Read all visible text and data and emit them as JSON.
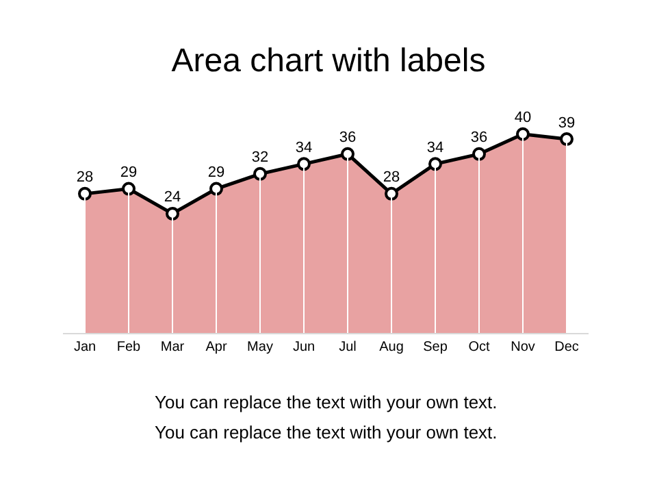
{
  "chart_data": {
    "type": "area",
    "title": "Area chart with labels",
    "categories": [
      "Jan",
      "Feb",
      "Mar",
      "Apr",
      "May",
      "Jun",
      "Jul",
      "Aug",
      "Sep",
      "Oct",
      "Nov",
      "Dec"
    ],
    "series": [
      {
        "color": "#e8a2a2",
        "values": [
          28,
          29,
          24,
          29,
          32,
          34,
          36,
          28,
          34,
          36,
          40,
          39
        ]
      }
    ],
    "data_labels": true,
    "marker": "circle",
    "line_style": "solid",
    "grid": "x",
    "legend": false,
    "annotations": [
      "You can replace the text with your own text.",
      "You can replace the text with your own text."
    ]
  }
}
